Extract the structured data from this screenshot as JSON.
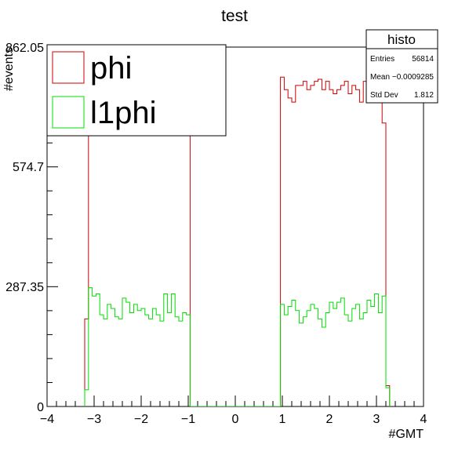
{
  "chart_data": {
    "type": "step-histogram",
    "title": "test",
    "xlabel": "#GMT",
    "ylabel": "#events",
    "xlim": [
      -4,
      4
    ],
    "ylim": [
      0,
      862.05
    ],
    "x_ticks": [
      -4,
      -3,
      -2,
      -1,
      0,
      1,
      2,
      3,
      4
    ],
    "x_tick_labels": [
      "−4",
      "−3",
      "−2",
      "−1",
      "0",
      "1",
      "2",
      "3",
      "4"
    ],
    "y_ticks": [
      0,
      287.35,
      574.7,
      862.05
    ],
    "y_tick_labels": [
      "0",
      "287.35",
      "574.7",
      "862.05"
    ],
    "bin_width": 0.08,
    "legend": {
      "position": "top-left",
      "entries": [
        {
          "series": "phi",
          "label": "phi"
        },
        {
          "series": "l1phi",
          "label": "l1phi"
        }
      ]
    },
    "stats_box": {
      "position": "top-right",
      "title": "histo",
      "rows": [
        {
          "label": "Entries",
          "value": "56814"
        },
        {
          "label": "Mean",
          "value": "−0.0009285"
        },
        {
          "label": "Std Dev",
          "value": "1.812"
        }
      ]
    },
    "series": [
      {
        "name": "phi",
        "color": "#cc0000",
        "x_start": -3.2,
        "values": [
          210,
          880,
          875,
          800,
          810,
          800,
          780,
          795,
          750,
          770,
          745,
          790,
          730,
          760,
          740,
          770,
          760,
          710,
          745,
          725,
          750,
          790,
          740,
          720,
          760,
          700,
          780,
          730,
          740,
          760,
          790,
          755,
          770,
          730,
          760,
          750,
          800,
          780,
          770,
          790,
          750,
          760,
          740,
          730,
          780,
          770,
          750,
          760,
          790,
          770,
          740,
          780,
          790,
          760,
          740,
          730,
          770,
          770,
          780,
          760,
          770,
          780,
          785,
          760,
          780,
          760,
          750,
          760,
          770,
          780,
          750,
          770,
          760,
          730,
          780,
          760,
          790,
          760,
          760,
          680,
          50
        ]
      },
      {
        "name": "l1phi",
        "color": "#00dd00",
        "x_start": -3.2,
        "values": [
          40,
          285,
          265,
          270,
          220,
          210,
          245,
          235,
          215,
          210,
          260,
          250,
          225,
          245,
          230,
          235,
          220,
          210,
          235,
          220,
          205,
          270,
          225,
          270,
          215,
          205,
          225,
          220,
          255,
          210,
          250,
          205,
          205,
          200,
          220,
          200,
          220,
          205,
          220,
          195,
          200,
          205,
          210,
          180,
          220,
          260,
          265,
          235,
          205,
          225,
          235,
          275,
          245,
          220,
          240,
          255,
          230,
          200,
          215,
          230,
          245,
          235,
          210,
          190,
          225,
          250,
          235,
          250,
          260,
          220,
          205,
          235,
          245,
          210,
          225,
          255,
          240,
          270,
          225,
          265,
          45
        ]
      }
    ],
    "zero_gaps": [
      [
        -1.0,
        0.92
      ]
    ]
  }
}
